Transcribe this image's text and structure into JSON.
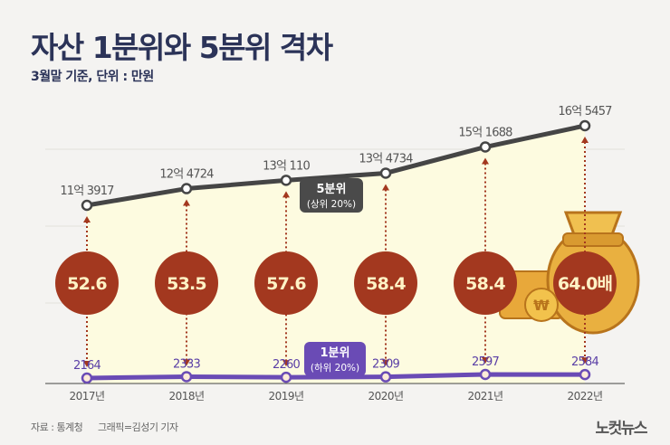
{
  "title": "자산 1분위와 5분위 격차",
  "subtitle": "3월말 기준, 단위 : 만원",
  "footer": {
    "source": "자료 : 통계청",
    "credit": "그래픽=김성기 기자",
    "logo": "노컷뉴스"
  },
  "colors": {
    "top_line": "#454545",
    "bottom_line": "#6a4bb5",
    "ratio_circle": "#a3381f",
    "area_fill": "#fdfbe0",
    "title": "#2b3358"
  },
  "chart_data": {
    "type": "line",
    "categories": [
      "2017년",
      "2018년",
      "2019년",
      "2020년",
      "2021년",
      "2022년"
    ],
    "series": [
      {
        "name": "5분위",
        "sublabel": "(상위 20%)",
        "values": [
          113917,
          124724,
          130110,
          134734,
          151688,
          165457
        ],
        "labels": [
          "11억 3917",
          "12억 4724",
          "13억 110",
          "13억 4734",
          "15억 1688",
          "16억 5457"
        ]
      },
      {
        "name": "1분위",
        "sublabel": "(하위 20%)",
        "values": [
          2164,
          2333,
          2260,
          2309,
          2597,
          2584
        ],
        "labels": [
          "2164",
          "2333",
          "2260",
          "2309",
          "2597",
          "2584"
        ]
      }
    ],
    "ratios": [
      "52.6",
      "53.5",
      "57.6",
      "58.4",
      "58.4",
      "64.0배"
    ],
    "unit": "만원"
  }
}
